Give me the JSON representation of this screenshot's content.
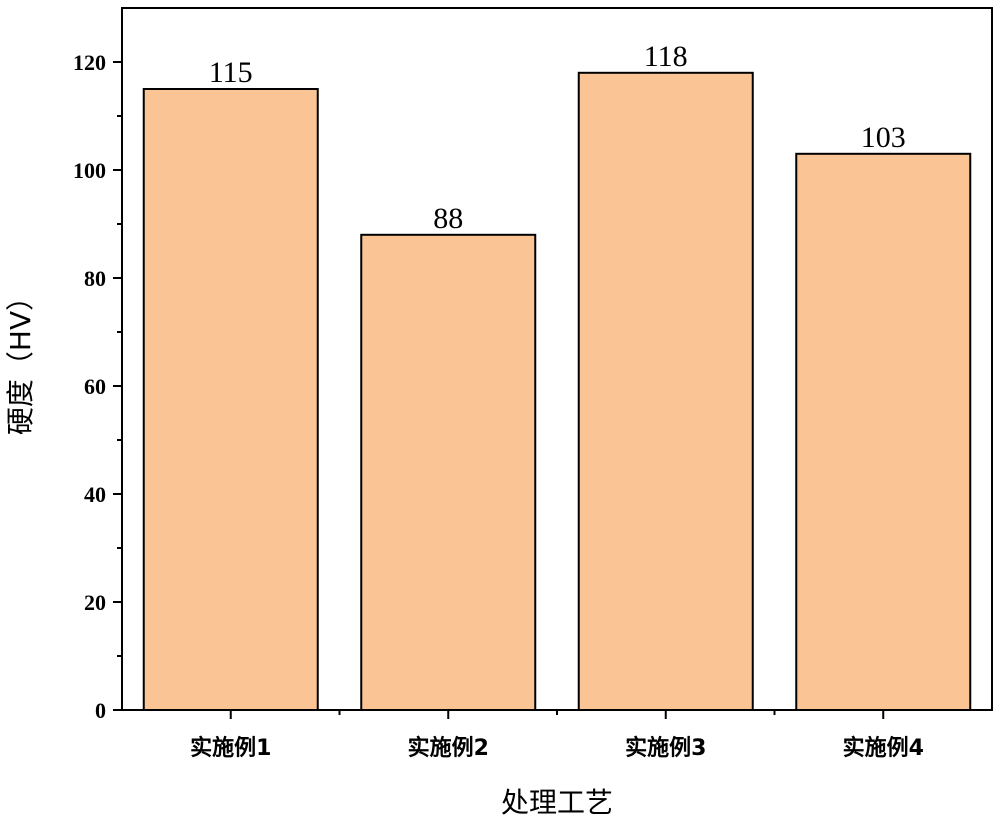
{
  "chart_data": {
    "type": "bar",
    "categories": [
      "实施例1",
      "实施例2",
      "实施例3",
      "实施例4"
    ],
    "values": [
      115,
      88,
      118,
      103
    ],
    "data_labels": [
      "115",
      "88",
      "118",
      "103"
    ],
    "xlabel": "处理工艺",
    "ylabel": "硬度（HV）",
    "ylim": [
      0,
      130
    ],
    "yticks": [
      0,
      20,
      40,
      60,
      80,
      100,
      120
    ],
    "grid": false,
    "legend": "none",
    "bar_color": "#fbc494",
    "bar_edge_color": "#000000"
  }
}
